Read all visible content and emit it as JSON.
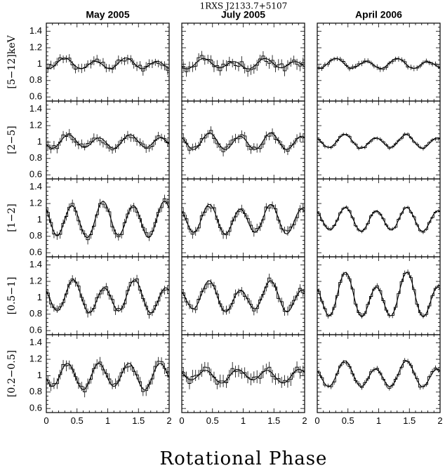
{
  "chart_data": {
    "type": "line",
    "title": "1RXS J2133.7+5107",
    "xlabel": "Rotational Phase",
    "xlim": [
      0,
      2
    ],
    "ylim": [
      0.55,
      1.5
    ],
    "x_ticks": [
      "0",
      "0.5",
      "1",
      "1.5",
      "2"
    ],
    "y_ticks": [
      "0.6",
      "0.8",
      "1",
      "1.2",
      "1.4"
    ],
    "columns": [
      "May 2005",
      "July 2005",
      "April 2006"
    ],
    "rows": [
      {
        "band": "[5−12]keV",
        "panels": [
          {
            "amp1": 0.02,
            "ph1": 0.3,
            "amp2": 0.055,
            "ph2": 0.3,
            "noise": 0.04,
            "err": 0.05
          },
          {
            "amp1": 0.02,
            "ph1": 0.4,
            "amp2": 0.05,
            "ph2": 0.35,
            "noise": 0.05,
            "err": 0.06
          },
          {
            "amp1": 0.02,
            "ph1": 0.3,
            "amp2": 0.05,
            "ph2": 0.3,
            "noise": 0.02,
            "err": 0.03
          }
        ]
      },
      {
        "band": "[2−5]",
        "panels": [
          {
            "amp1": 0.02,
            "ph1": 0.4,
            "amp2": 0.07,
            "ph2": 0.36,
            "noise": 0.04,
            "err": 0.05
          },
          {
            "amp1": 0.02,
            "ph1": 0.45,
            "amp2": 0.09,
            "ph2": 0.45,
            "noise": 0.04,
            "err": 0.05
          },
          {
            "amp1": 0.02,
            "ph1": 0.4,
            "amp2": 0.07,
            "ph2": 0.45,
            "noise": 0.015,
            "err": 0.02
          }
        ]
      },
      {
        "band": "[1−2]",
        "panels": [
          {
            "amp1": 0.03,
            "ph1": 0.0,
            "amp2": 0.2,
            "ph2": 0.42,
            "noise": 0.04,
            "err": 0.05
          },
          {
            "amp1": 0.03,
            "ph1": 0.4,
            "amp2": 0.16,
            "ph2": 0.45,
            "noise": 0.04,
            "err": 0.05
          },
          {
            "amp1": 0.02,
            "ph1": 0.4,
            "amp2": 0.13,
            "ph2": 0.46,
            "noise": 0.015,
            "err": 0.02
          }
        ]
      },
      {
        "band": "[0.5−1]",
        "panels": [
          {
            "amp1": 0.05,
            "ph1": 0.4,
            "amp2": 0.17,
            "ph2": 0.44,
            "noise": 0.035,
            "err": 0.05
          },
          {
            "amp1": 0.06,
            "ph1": 0.4,
            "amp2": 0.15,
            "ph2": 0.45,
            "noise": 0.04,
            "err": 0.05
          },
          {
            "amp1": 0.09,
            "ph1": 0.45,
            "amp2": 0.22,
            "ph2": 0.46,
            "noise": 0.02,
            "err": 0.03
          }
        ]
      },
      {
        "band": "[0.2−0.5]",
        "panels": [
          {
            "amp1": 0.02,
            "ph1": 0.1,
            "amp2": 0.15,
            "ph2": 0.35,
            "noise": 0.04,
            "err": 0.06
          },
          {
            "amp1": 0.02,
            "ph1": 0.1,
            "amp2": 0.07,
            "ph2": 0.4,
            "noise": 0.05,
            "err": 0.07
          },
          {
            "amp1": 0.05,
            "ph1": 0.45,
            "amp2": 0.13,
            "ph2": 0.45,
            "noise": 0.025,
            "err": 0.03
          }
        ]
      }
    ]
  }
}
